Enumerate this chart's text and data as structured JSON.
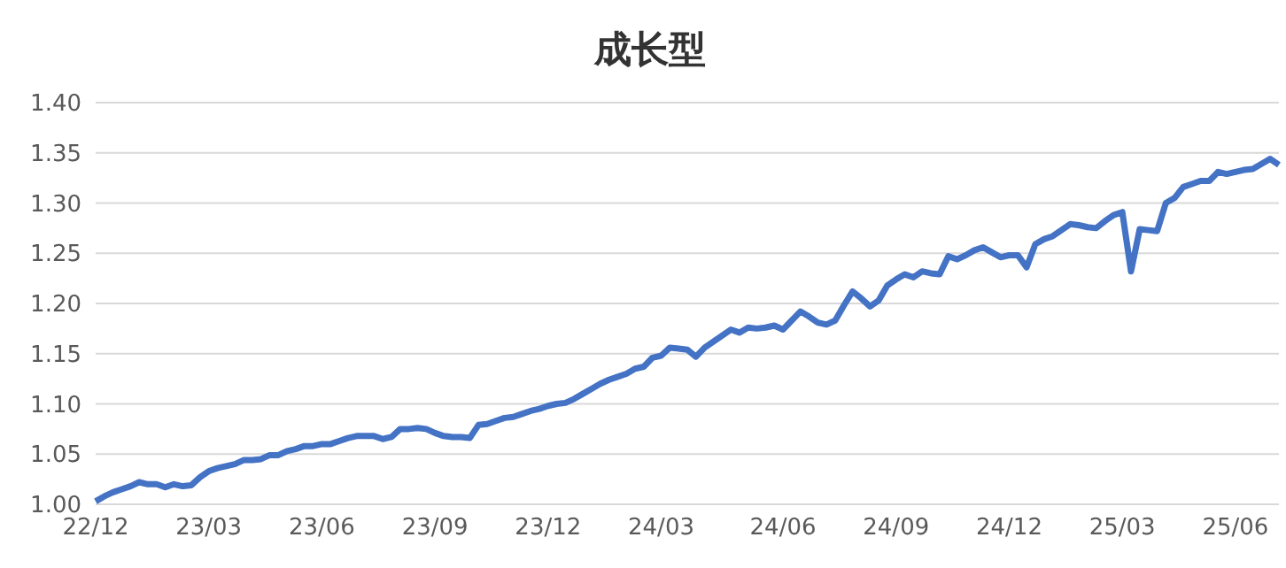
{
  "chart_data": {
    "type": "line",
    "title": "成长型",
    "categories": [
      "22/12",
      null,
      null,
      null,
      null,
      null,
      null,
      null,
      null,
      null,
      null,
      null,
      null,
      "23/03",
      null,
      null,
      null,
      null,
      null,
      null,
      null,
      null,
      null,
      null,
      null,
      null,
      "23/06",
      null,
      null,
      null,
      null,
      null,
      null,
      null,
      null,
      null,
      null,
      null,
      null,
      "23/09",
      null,
      null,
      null,
      null,
      null,
      null,
      null,
      null,
      null,
      null,
      null,
      null,
      "23/12",
      null,
      null,
      null,
      null,
      null,
      null,
      null,
      null,
      null,
      null,
      null,
      null,
      "24/03",
      null,
      null,
      null,
      null,
      null,
      null,
      null,
      null,
      null,
      null,
      null,
      null,
      null,
      "24/06",
      null,
      null,
      null,
      null,
      null,
      null,
      null,
      null,
      null,
      null,
      null,
      null,
      "24/09",
      null,
      null,
      null,
      null,
      null,
      null,
      null,
      null,
      null,
      null,
      null,
      null,
      "24/12",
      null,
      null,
      null,
      null,
      null,
      null,
      null,
      null,
      null,
      null,
      null,
      null,
      "25/03",
      null,
      null,
      null,
      null,
      null,
      null,
      null,
      null,
      null,
      null,
      null,
      null,
      "25/06",
      null,
      null,
      null,
      null,
      null
    ],
    "series": [
      {
        "color": "#4472c4",
        "values": [
          1.003,
          1.008,
          1.012,
          1.015,
          1.018,
          1.022,
          1.02,
          1.02,
          1.017,
          1.02,
          1.018,
          1.019,
          1.027,
          1.033,
          1.036,
          1.038,
          1.04,
          1.044,
          1.044,
          1.045,
          1.049,
          1.049,
          1.053,
          1.055,
          1.058,
          1.058,
          1.06,
          1.06,
          1.063,
          1.066,
          1.068,
          1.068,
          1.068,
          1.065,
          1.067,
          1.075,
          1.075,
          1.076,
          1.075,
          1.071,
          1.068,
          1.067,
          1.067,
          1.066,
          1.079,
          1.08,
          1.083,
          1.086,
          1.087,
          1.09,
          1.093,
          1.095,
          1.098,
          1.1,
          1.101,
          1.105,
          1.11,
          1.115,
          1.12,
          1.124,
          1.127,
          1.13,
          1.135,
          1.137,
          1.146,
          1.148,
          1.156,
          1.155,
          1.154,
          1.147,
          1.156,
          1.162,
          1.168,
          1.174,
          1.171,
          1.176,
          1.175,
          1.176,
          1.178,
          1.174,
          1.183,
          1.192,
          1.187,
          1.181,
          1.179,
          1.183,
          1.198,
          1.212,
          1.205,
          1.197,
          1.203,
          1.218,
          1.224,
          1.229,
          1.226,
          1.232,
          1.23,
          1.229,
          1.247,
          1.244,
          1.248,
          1.253,
          1.256,
          1.251,
          1.246,
          1.248,
          1.248,
          1.236,
          1.259,
          1.264,
          1.267,
          1.273,
          1.279,
          1.278,
          1.276,
          1.275,
          1.282,
          1.288,
          1.291,
          1.232,
          1.274,
          1.273,
          1.272,
          1.3,
          1.305,
          1.316,
          1.319,
          1.322,
          1.322,
          1.331,
          1.329,
          1.331,
          1.333,
          1.334,
          1.339,
          1.344,
          1.338
        ]
      }
    ],
    "ylim": [
      1.0,
      1.4
    ],
    "yticks": [
      {
        "value": 1.0,
        "label": "1.00"
      },
      {
        "value": 1.05,
        "label": "1.05"
      },
      {
        "value": 1.1,
        "label": "1.10"
      },
      {
        "value": 1.15,
        "label": "1.15"
      },
      {
        "value": 1.2,
        "label": "1.20"
      },
      {
        "value": 1.25,
        "label": "1.25"
      },
      {
        "value": 1.3,
        "label": "1.30"
      },
      {
        "value": 1.35,
        "label": "1.35"
      },
      {
        "value": 1.4,
        "label": "1.40"
      }
    ],
    "grid": "y",
    "legend": false,
    "marker": "none",
    "line_style": "solid"
  }
}
